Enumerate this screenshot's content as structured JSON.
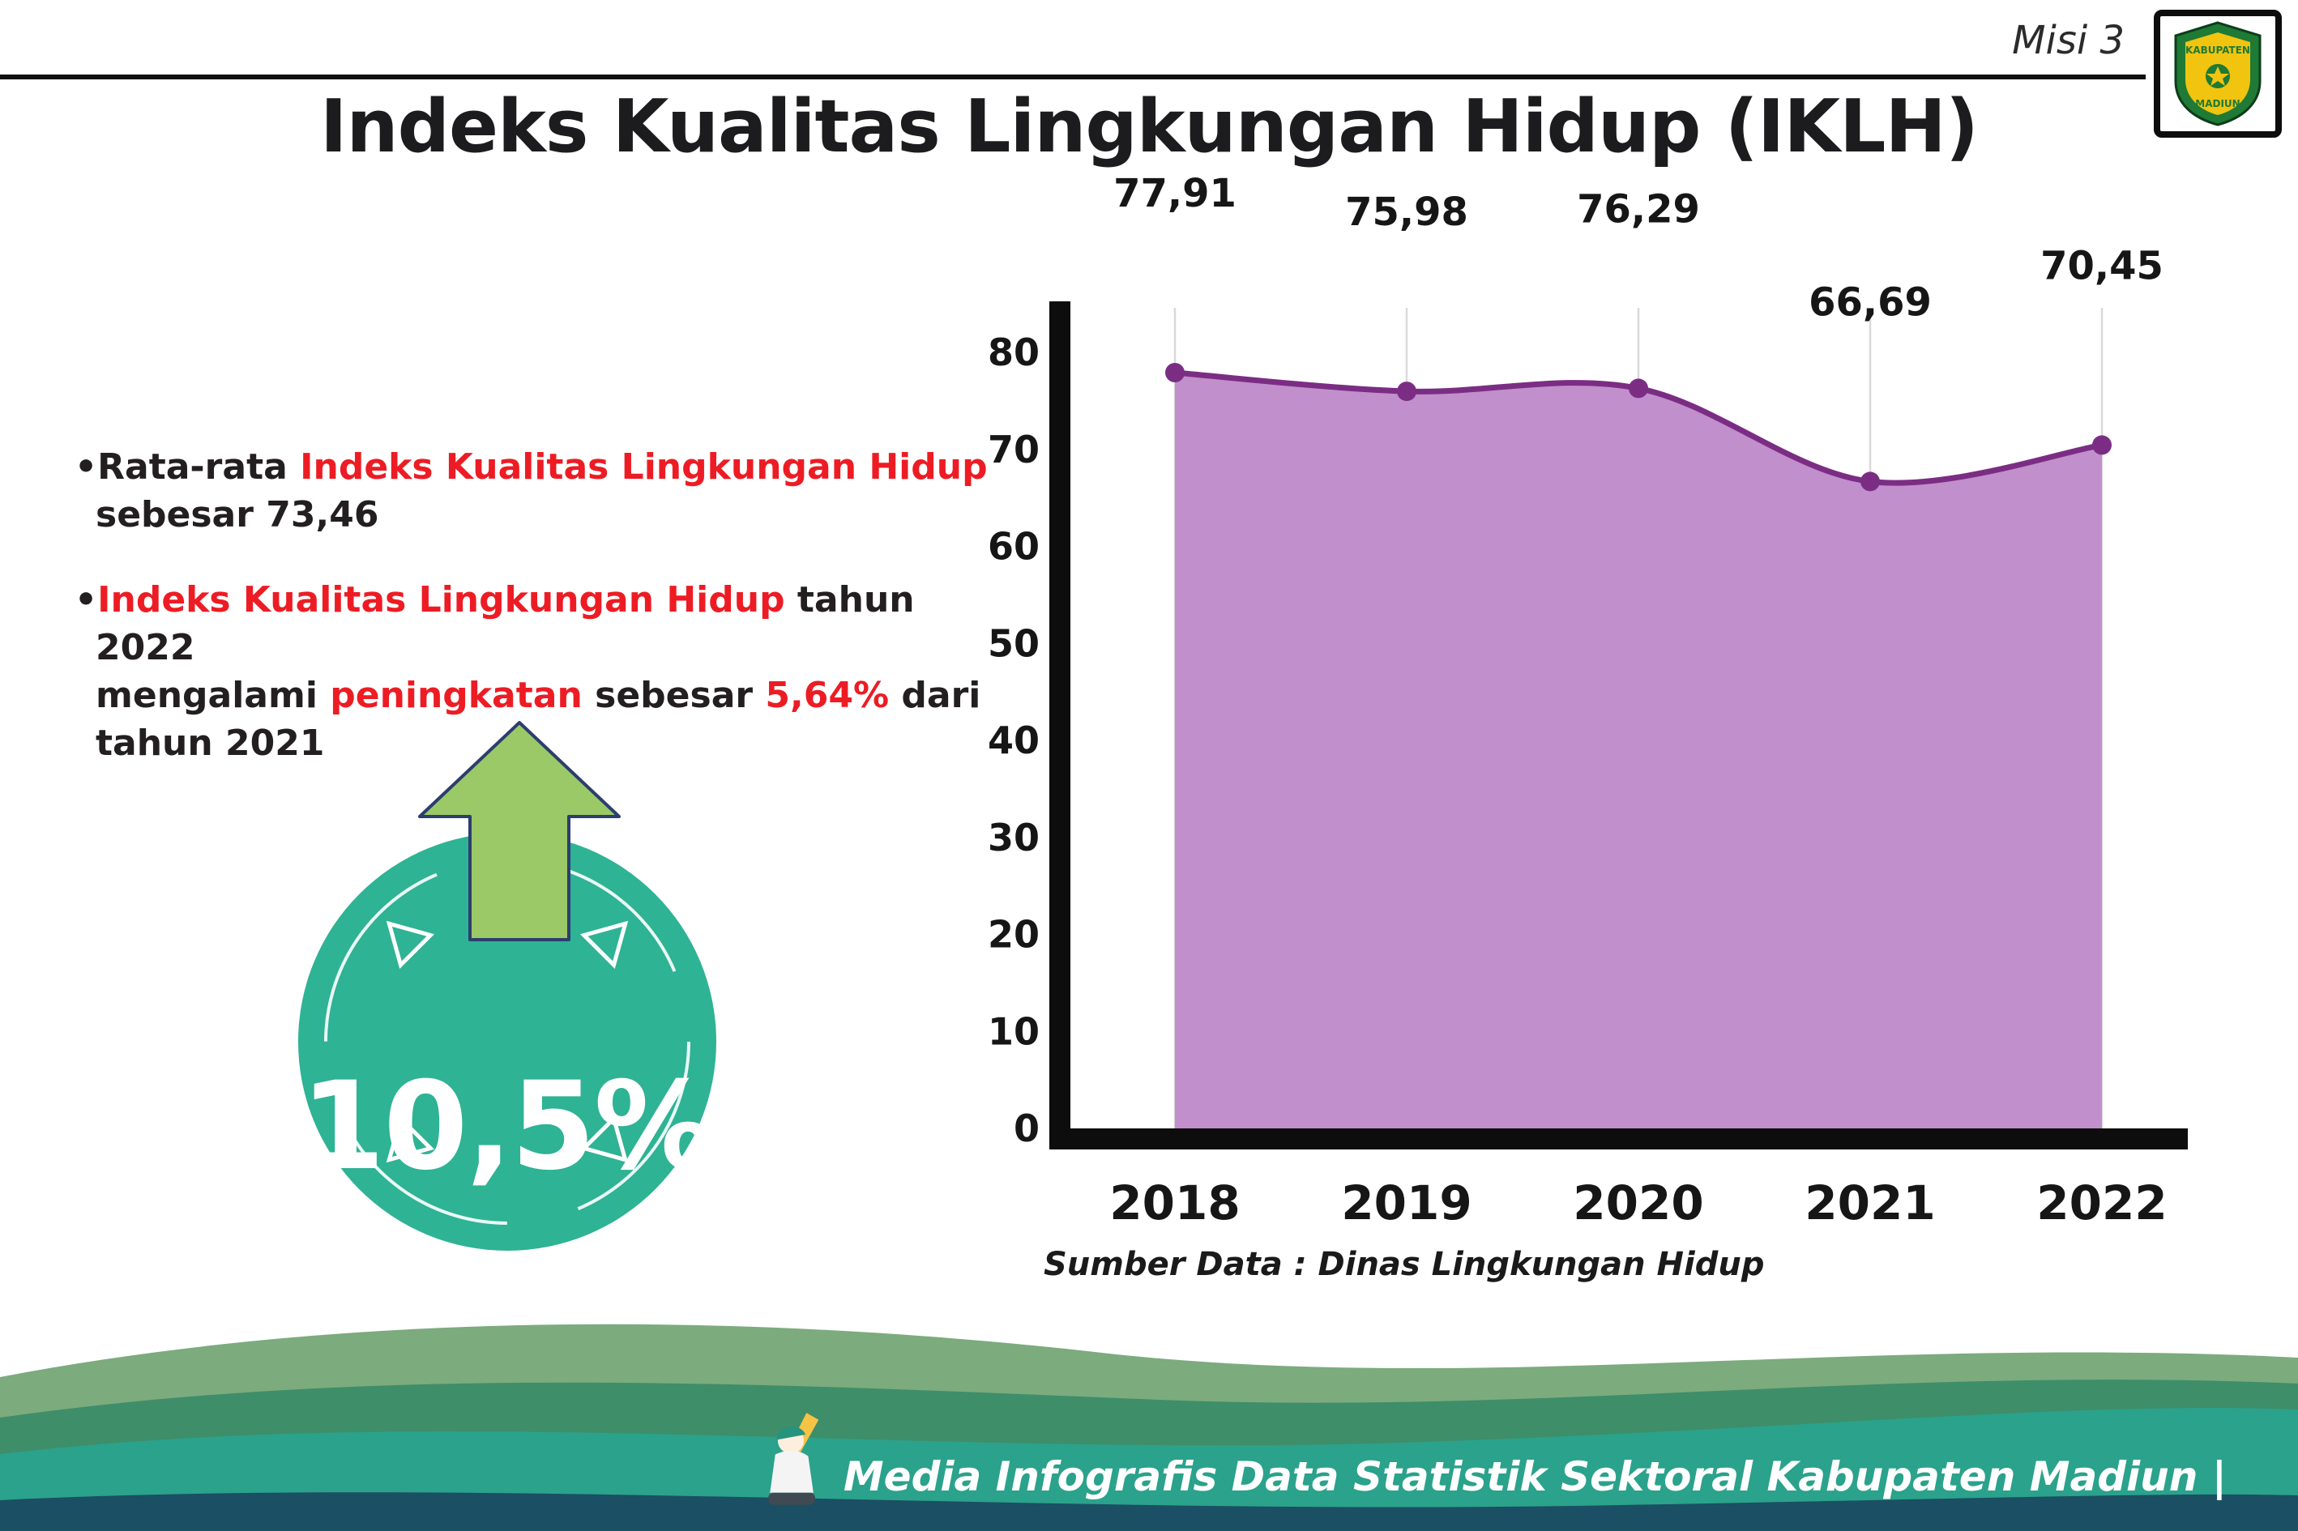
{
  "header": {
    "misi": "Misi 3",
    "logo": {
      "top": "KABUPATEN",
      "bottom": "MADIUN"
    }
  },
  "title": "Indeks Kualitas Lingkungan Hidup (IKLH)",
  "bullet_marker": "•",
  "bullets": [
    {
      "segments": [
        {
          "t": "Rata-rata ",
          "c": "k"
        },
        {
          "t": "Indeks Kualitas Lingkungan Hidup",
          "c": "r"
        },
        {
          "t": "\nsebesar 73,46",
          "c": "k"
        }
      ]
    },
    {
      "segments": [
        {
          "t": "Indeks Kualitas Lingkungan Hidup",
          "c": "r"
        },
        {
          "t": " tahun 2022\nmengalami ",
          "c": "k"
        },
        {
          "t": "peningkatan",
          "c": "r"
        },
        {
          "t": " sebesar ",
          "c": "k"
        },
        {
          "t": "5,64%",
          "c": "r"
        },
        {
          "t": " dari\ntahun 2021",
          "c": "k"
        }
      ]
    }
  ],
  "badge": {
    "value": "10,5%",
    "direction": "up",
    "circle_color": "#2eb394",
    "arrow_color": "#9cc968"
  },
  "chart_data": {
    "type": "area",
    "title": "",
    "categories": [
      "2018",
      "2019",
      "2020",
      "2021",
      "2022"
    ],
    "values": [
      77.91,
      75.98,
      76.29,
      66.69,
      70.45
    ],
    "point_labels": [
      "77,91",
      "75,98",
      "76,29",
      "66,69",
      "70,45"
    ],
    "xlabel": "",
    "ylabel": "",
    "ylim": [
      0,
      80
    ],
    "yticks": [
      0,
      10,
      20,
      30,
      40,
      50,
      60,
      70,
      80
    ],
    "grid": "vertical-light",
    "legend": "none",
    "line_color": "#7b2d84",
    "fill_color": "#c18fcb",
    "axis_color": "#0d0d0d",
    "source_label": "Sumber Data : Dinas Lingkungan Hidup"
  },
  "footer": {
    "text": "Media Infografis Data Statistik Sektoral Kabupaten Madiun |"
  },
  "colors": {
    "red_accent": "#ed1c24",
    "text": "#231f20",
    "wave_sage": "#7cab7e",
    "wave_green": "#3e8e69",
    "wave_teal": "#2ba28b",
    "wave_dark": "#1b4f63"
  }
}
